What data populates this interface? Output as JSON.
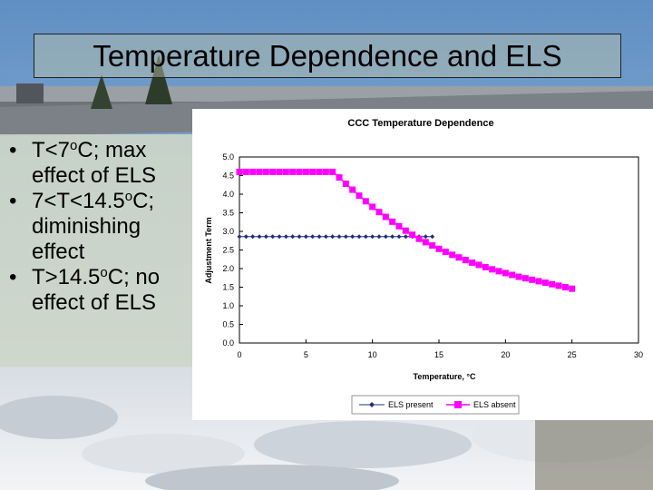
{
  "slide": {
    "title": "Temperature Dependence and ELS",
    "bullets": [
      {
        "pre": "T<7",
        "sup": "o",
        "post": "C; max effect of ELS"
      },
      {
        "pre": "7<T<14.5",
        "sup": "o",
        "post": "C; diminishing effect"
      },
      {
        "pre": "T>14.5",
        "sup": "o",
        "post": "C; no effect of ELS"
      }
    ]
  },
  "chart_data": {
    "type": "line",
    "title": "CCC Temperature Dependence",
    "xlabel": "Temperature, °C",
    "ylabel": "Adjustment Term",
    "xlim": [
      0,
      30
    ],
    "ylim": [
      0,
      5
    ],
    "xticks": [
      "0",
      "5",
      "10",
      "15",
      "20",
      "25",
      "30"
    ],
    "yticks": [
      "0.0",
      "0.5",
      "1.0",
      "1.5",
      "2.0",
      "2.5",
      "3.0",
      "3.5",
      "4.0",
      "4.5",
      "5.0"
    ],
    "grid": false,
    "legend_position": "bottom",
    "series": [
      {
        "name": "ELS present",
        "color": "#1f2f7a",
        "marker": "diamond",
        "x": [
          0,
          0.5,
          1,
          1.5,
          2,
          2.5,
          3,
          3.5,
          4,
          4.5,
          5,
          5.5,
          6,
          6.5,
          7,
          7.5,
          8,
          8.5,
          9,
          9.5,
          10,
          10.5,
          11,
          11.5,
          12,
          12.5,
          13,
          13.5,
          14,
          14.5
        ],
        "y": [
          2.86,
          2.86,
          2.86,
          2.86,
          2.86,
          2.86,
          2.86,
          2.86,
          2.86,
          2.86,
          2.86,
          2.86,
          2.86,
          2.86,
          2.86,
          2.86,
          2.86,
          2.86,
          2.86,
          2.86,
          2.86,
          2.86,
          2.86,
          2.86,
          2.86,
          2.86,
          2.86,
          2.86,
          2.86,
          2.86
        ]
      },
      {
        "name": "ELS absent",
        "color": "#ff00ff",
        "marker": "square",
        "x": [
          0,
          0.5,
          1,
          1.5,
          2,
          2.5,
          3,
          3.5,
          4,
          4.5,
          5,
          5.5,
          6,
          6.5,
          7,
          7.5,
          8,
          8.5,
          9,
          9.5,
          10,
          10.5,
          11,
          11.5,
          12,
          12.5,
          13,
          13.5,
          14,
          14.5,
          15,
          15.5,
          16,
          16.5,
          17,
          17.5,
          18,
          18.5,
          19,
          19.5,
          20,
          20.5,
          21,
          21.5,
          22,
          22.5,
          23,
          23.5,
          24,
          24.5,
          25
        ],
        "y": [
          4.6,
          4.6,
          4.6,
          4.6,
          4.6,
          4.6,
          4.6,
          4.6,
          4.6,
          4.6,
          4.6,
          4.6,
          4.6,
          4.6,
          4.6,
          4.45,
          4.28,
          4.12,
          3.96,
          3.81,
          3.66,
          3.52,
          3.39,
          3.26,
          3.14,
          3.02,
          2.91,
          2.8,
          2.71,
          2.62,
          2.53,
          2.45,
          2.37,
          2.3,
          2.23,
          2.16,
          2.1,
          2.04,
          1.98,
          1.93,
          1.88,
          1.83,
          1.78,
          1.74,
          1.7,
          1.66,
          1.62,
          1.58,
          1.54,
          1.5,
          1.46
        ]
      }
    ]
  }
}
